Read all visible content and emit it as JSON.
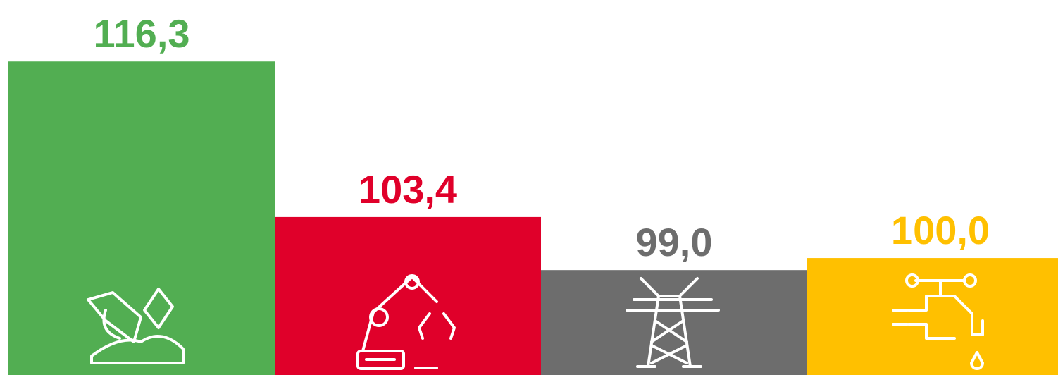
{
  "chart_data": {
    "type": "bar",
    "categories": [
      null,
      null,
      null,
      null
    ],
    "values": [
      116.3,
      103.4,
      99.0,
      100.0
    ],
    "value_labels": [
      "116,3",
      "103,4",
      "99,0",
      "100,0"
    ],
    "colors": [
      "#52ae52",
      "#e0002a",
      "#6d6d6d",
      "#ffc000"
    ],
    "ylim": [
      90.3,
      121.4
    ]
  }
}
